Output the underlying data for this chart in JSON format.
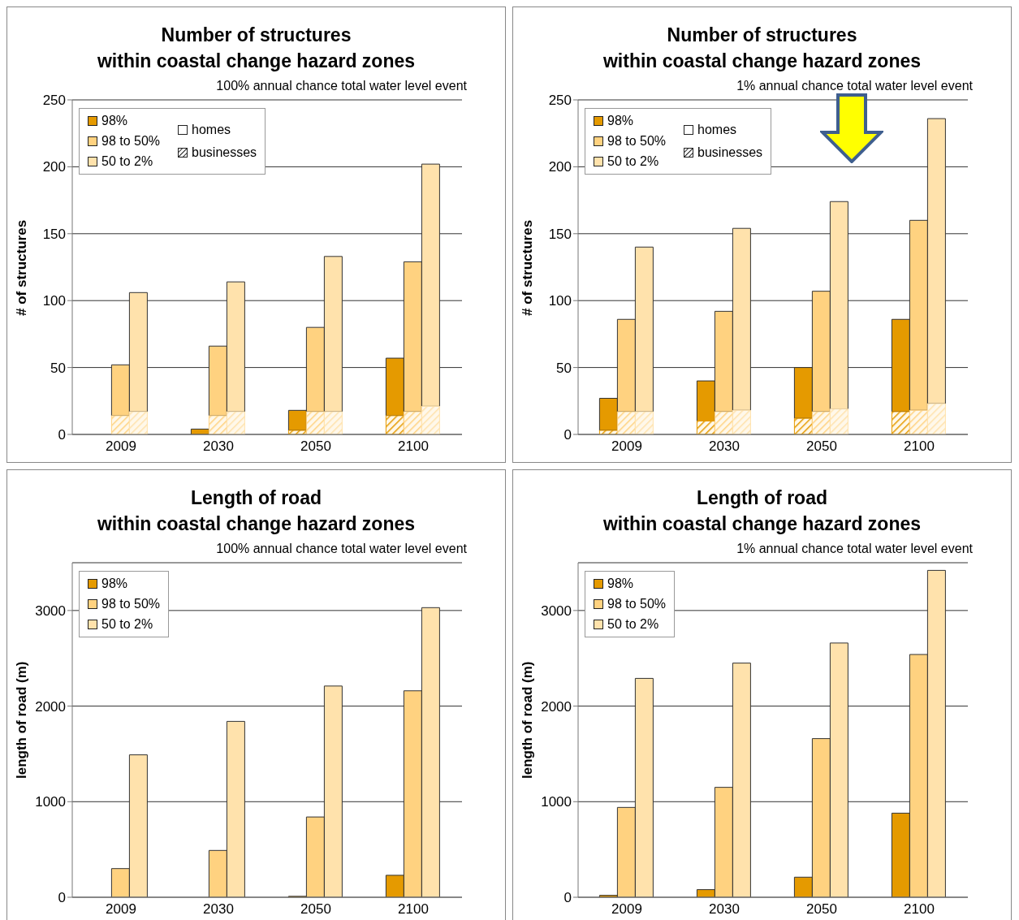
{
  "chart_data": [
    {
      "type": "bar",
      "title": "Number of structures\nwithin coastal change hazard zones",
      "subtitle": "100% annual chance total water level event",
      "ylabel": "# of structures",
      "categories": [
        "2009",
        "2030",
        "2050",
        "2100"
      ],
      "ylim": [
        0,
        250
      ],
      "yticks": [
        0,
        50,
        100,
        150,
        200,
        250
      ],
      "grid": "y",
      "legend": "top left",
      "annotations": [
        "homes",
        "businesses"
      ],
      "series": [
        {
          "name": "98%",
          "color": "#e59a00",
          "base": [
            null,
            0,
            3,
            14
          ],
          "values": [
            null,
            4,
            15,
            43
          ]
        },
        {
          "name": "98 to 50%",
          "color": "#ffd280",
          "base": [
            14,
            14,
            17,
            17
          ],
          "values": [
            38,
            52,
            63,
            112
          ]
        },
        {
          "name": "50 to 2%",
          "color": "#ffe2ac",
          "base": [
            17,
            17,
            17,
            21
          ],
          "values": [
            89,
            97,
            116,
            181
          ]
        },
        {
          "color": "#e59a00",
          "values": [
            null,
            null,
            3,
            14
          ]
        },
        {
          "color": "#ffd280",
          "values": [
            14,
            14,
            17,
            17
          ]
        },
        {
          "color": "#ffe2ac",
          "values": [
            17,
            17,
            17,
            21
          ]
        }
      ]
    },
    {
      "type": "bar",
      "title": "Number of structures\nwithin coastal change hazard zones",
      "subtitle": "1% annual chance total water level event",
      "ylabel": "# of structures",
      "categories": [
        "2009",
        "2030",
        "2050",
        "2100"
      ],
      "ylim": [
        0,
        250
      ],
      "yticks": [
        0,
        50,
        100,
        150,
        200,
        250
      ],
      "grid": "y",
      "legend": "top left",
      "annotations": [
        "homes",
        "businesses"
      ],
      "series": [
        {
          "name": "98%",
          "color": "#e59a00",
          "base": [
            3,
            10,
            12,
            17
          ],
          "values": [
            24,
            30,
            38,
            69
          ]
        },
        {
          "name": "98 to 50%",
          "color": "#ffd280",
          "base": [
            17,
            17,
            17,
            18
          ],
          "values": [
            69,
            75,
            90,
            142
          ]
        },
        {
          "name": "50 to 2%",
          "color": "#ffe2ac",
          "base": [
            17,
            18,
            19,
            23
          ],
          "values": [
            123,
            136,
            155,
            213
          ]
        },
        {
          "color": "#e59a00",
          "values": [
            3,
            10,
            12,
            17
          ]
        },
        {
          "color": "#ffd280",
          "values": [
            17,
            17,
            17,
            18
          ]
        },
        {
          "color": "#ffe2ac",
          "values": [
            17,
            18,
            19,
            23
          ]
        }
      ]
    },
    {
      "type": "bar",
      "title": "Length of road\nwithin coastal change hazard zones",
      "subtitle": "100% annual chance total water level event",
      "ylabel": "length of road (m)",
      "categories": [
        "2009",
        "2030",
        "2050",
        "2100"
      ],
      "ylim": [
        0,
        3500
      ],
      "yticks": [
        0,
        1000,
        2000,
        3000
      ],
      "grid": "y",
      "legend": "top left",
      "series": [
        {
          "name": "98%",
          "color": "#e59a00",
          "values": [
            0,
            0,
            10,
            230
          ]
        },
        {
          "name": "98 to 50%",
          "color": "#ffd280",
          "values": [
            300,
            490,
            840,
            2160
          ]
        },
        {
          "name": "50 to 2%",
          "color": "#ffe2ac",
          "values": [
            1490,
            1840,
            2210,
            3030
          ]
        }
      ]
    },
    {
      "type": "bar",
      "title": "Length of road\nwithin coastal change hazard zones",
      "subtitle": "1% annual chance total water level event",
      "ylabel": "length of road (m)",
      "categories": [
        "2009",
        "2030",
        "2050",
        "2100"
      ],
      "ylim": [
        0,
        3500
      ],
      "yticks": [
        0,
        1000,
        2000,
        3000
      ],
      "grid": "y",
      "legend": "top left",
      "series": [
        {
          "name": "98%",
          "color": "#e59a00",
          "values": [
            20,
            80,
            210,
            880
          ]
        },
        {
          "name": "98 to 50%",
          "color": "#ffd280",
          "values": [
            940,
            1150,
            1660,
            2540
          ]
        },
        {
          "name": "50 to 2%",
          "color": "#ffe2ac",
          "values": [
            2290,
            2450,
            2660,
            3420
          ]
        }
      ]
    }
  ]
}
